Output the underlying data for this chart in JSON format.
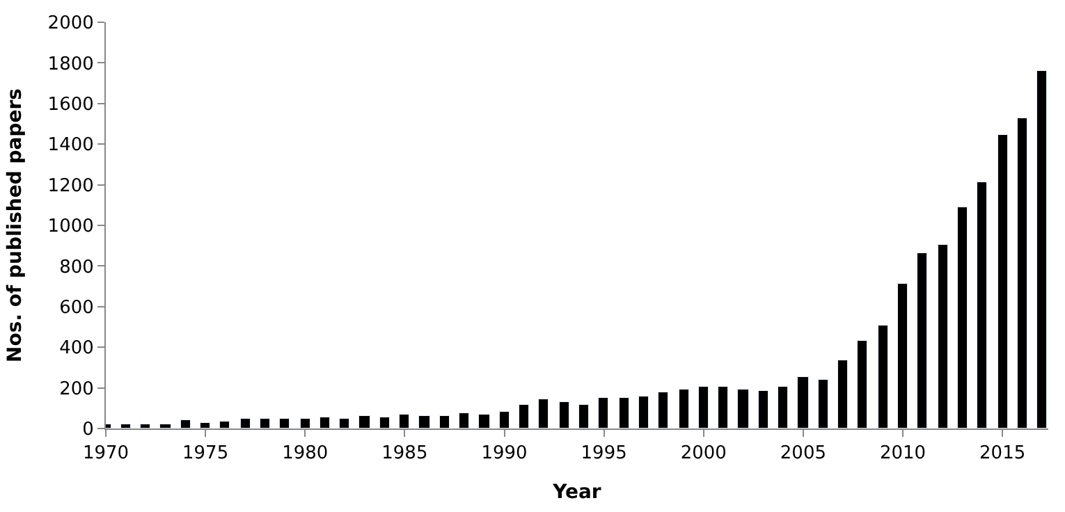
{
  "chart_data": {
    "type": "bar",
    "xlabel": "Year",
    "ylabel": "Nos. of published papers",
    "x": [
      1970,
      1971,
      1972,
      1973,
      1974,
      1975,
      1976,
      1977,
      1978,
      1979,
      1980,
      1981,
      1982,
      1983,
      1984,
      1985,
      1986,
      1987,
      1988,
      1989,
      1990,
      1991,
      1992,
      1993,
      1994,
      1995,
      1996,
      1997,
      1998,
      1999,
      2000,
      2001,
      2002,
      2003,
      2004,
      2005,
      2006,
      2007,
      2008,
      2009,
      2010,
      2011,
      2012,
      2013,
      2014,
      2015,
      2016,
      2017
    ],
    "values": [
      20,
      18,
      22,
      20,
      38,
      27,
      33,
      45,
      51,
      51,
      51,
      56,
      49,
      65,
      54,
      71,
      65,
      65,
      76,
      71,
      82,
      114,
      147,
      132,
      118,
      152,
      149,
      156,
      176,
      192,
      205,
      203,
      194,
      187,
      203,
      252,
      241,
      334,
      430,
      508,
      709,
      861,
      903,
      1090,
      1213,
      1445,
      1525,
      1761
    ],
    "color": "#000000",
    "xlim": [
      1970,
      2017.3
    ],
    "xticks": [
      1970,
      1975,
      1980,
      1985,
      1990,
      1995,
      2000,
      2005,
      2010,
      2015
    ],
    "ylim": [
      0,
      2000
    ],
    "yticks": [
      0,
      200,
      400,
      600,
      800,
      1000,
      1200,
      1400,
      1600,
      1800,
      2000
    ]
  }
}
